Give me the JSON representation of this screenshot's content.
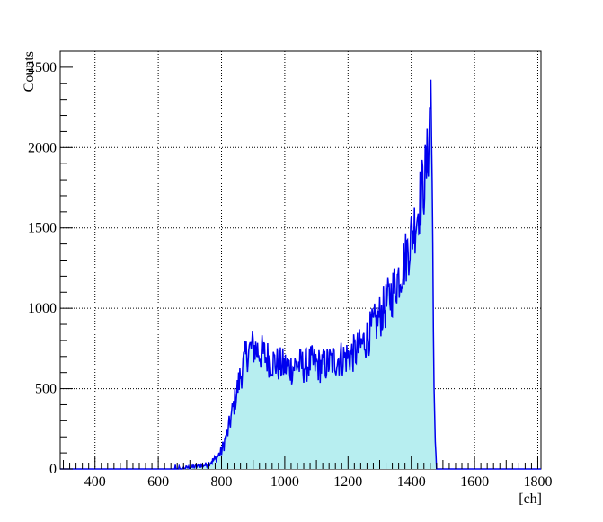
{
  "chart_data": {
    "type": "area",
    "title": "",
    "xlabel": "[ch]",
    "ylabel": "Counts",
    "xlim": [
      290,
      1810
    ],
    "ylim": [
      0,
      2600
    ],
    "grid": true,
    "x_ticks": [
      400,
      600,
      800,
      1000,
      1200,
      1400,
      1600,
      1800
    ],
    "y_ticks": [
      0,
      500,
      1000,
      1500,
      2000
    ],
    "y_top_label": "2500",
    "fill_color": "#b7eef0",
    "line_color": "#0000ee",
    "x": [
      290,
      650,
      700,
      750,
      780,
      800,
      820,
      840,
      860,
      870,
      880,
      900,
      920,
      940,
      960,
      980,
      1000,
      1020,
      1040,
      1060,
      1080,
      1100,
      1120,
      1140,
      1160,
      1180,
      1200,
      1220,
      1240,
      1260,
      1280,
      1300,
      1320,
      1340,
      1360,
      1380,
      1400,
      1410,
      1420,
      1430,
      1440,
      1450,
      1455,
      1460,
      1462,
      1465,
      1468,
      1470,
      1472,
      1475,
      1480,
      1810
    ],
    "y": [
      0,
      0,
      10,
      25,
      60,
      110,
      230,
      410,
      580,
      650,
      720,
      760,
      730,
      700,
      670,
      650,
      640,
      630,
      650,
      640,
      660,
      650,
      640,
      660,
      680,
      690,
      700,
      720,
      760,
      820,
      880,
      950,
      1020,
      1100,
      1200,
      1300,
      1450,
      1520,
      1600,
      1700,
      1780,
      1900,
      2050,
      2250,
      2450,
      1900,
      1400,
      1000,
      500,
      180,
      0,
      0
    ]
  }
}
